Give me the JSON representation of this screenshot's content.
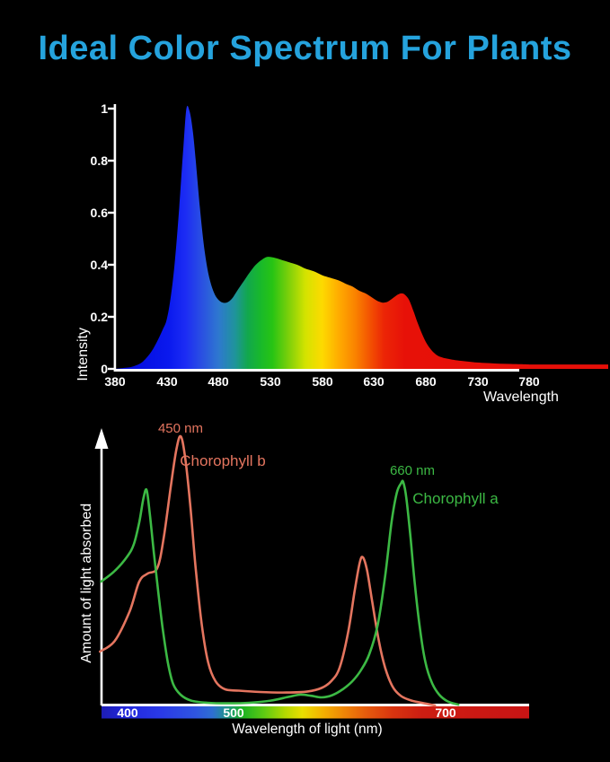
{
  "title": "Ideal Color Spectrum For Plants",
  "colors": {
    "background": "#000000",
    "title": "#25a3dd",
    "axis": "#ffffff",
    "chlorophyll_b": "#e4755f",
    "chlorophyll_a": "#3cb944"
  },
  "chart_data": [
    {
      "name": "led-light-spectrum",
      "type": "area",
      "xlabel": "Wavelength",
      "ylabel": "Intensity",
      "xlim": [
        380,
        780
      ],
      "ylim": [
        0,
        1
      ],
      "grid": false,
      "x_ticks": [
        "380",
        "430",
        "480",
        "530",
        "580",
        "630",
        "680",
        "730",
        "780"
      ],
      "y_ticks": [
        "1",
        "0.8",
        "0.6",
        "0.4",
        "0.2",
        "0"
      ],
      "series": [
        {
          "name": "intensity",
          "x": [
            380,
            390,
            398,
            406,
            414,
            420,
            426,
            430,
            434,
            438,
            442,
            446,
            449,
            452,
            455,
            458,
            462,
            466,
            470,
            474,
            478,
            483,
            488,
            493,
            498,
            504,
            510,
            516,
            522,
            527,
            533,
            540,
            548,
            556,
            564,
            572,
            580,
            588,
            596,
            604,
            610,
            616,
            622,
            628,
            633,
            638,
            642,
            646,
            650,
            654,
            657,
            660,
            664,
            668,
            672,
            676,
            680,
            684,
            688,
            692,
            696,
            700,
            708,
            716,
            724,
            732,
            742,
            752,
            762,
            772,
            780
          ],
          "y": [
            0,
            0.004,
            0.01,
            0.025,
            0.06,
            0.1,
            0.15,
            0.19,
            0.28,
            0.42,
            0.62,
            0.85,
            1.0,
            0.99,
            0.92,
            0.8,
            0.62,
            0.47,
            0.37,
            0.31,
            0.275,
            0.256,
            0.255,
            0.27,
            0.3,
            0.335,
            0.37,
            0.4,
            0.42,
            0.43,
            0.428,
            0.42,
            0.41,
            0.4,
            0.385,
            0.375,
            0.36,
            0.35,
            0.34,
            0.325,
            0.315,
            0.3,
            0.29,
            0.275,
            0.262,
            0.255,
            0.256,
            0.265,
            0.277,
            0.287,
            0.29,
            0.285,
            0.265,
            0.225,
            0.18,
            0.14,
            0.105,
            0.08,
            0.062,
            0.05,
            0.044,
            0.04,
            0.034,
            0.03,
            0.027,
            0.024,
            0.022,
            0.02,
            0.019,
            0.018,
            0.017
          ]
        }
      ],
      "peaks": [
        {
          "wavelength": 449,
          "intensity": 1.0
        },
        {
          "wavelength": 530,
          "intensity": 0.43
        },
        {
          "wavelength": 657,
          "intensity": 0.29
        }
      ],
      "gradient_stops": [
        [
          0,
          "#0008d8"
        ],
        [
          0.13,
          "#0a19ee"
        ],
        [
          0.17,
          "#1c2cf4"
        ],
        [
          0.21,
          "#2a50e2"
        ],
        [
          0.25,
          "#2e78cf"
        ],
        [
          0.29,
          "#1f949b"
        ],
        [
          0.32,
          "#12a74e"
        ],
        [
          0.35,
          "#18b82c"
        ],
        [
          0.38,
          "#27c414"
        ],
        [
          0.42,
          "#7ed00a"
        ],
        [
          0.46,
          "#d4e300"
        ],
        [
          0.5,
          "#fdda00"
        ],
        [
          0.54,
          "#ffac00"
        ],
        [
          0.58,
          "#fa8300"
        ],
        [
          0.62,
          "#f24c02"
        ],
        [
          0.65,
          "#ec2506"
        ],
        [
          0.7,
          "#e71108"
        ],
        [
          1,
          "#e60f08"
        ]
      ]
    },
    {
      "name": "chlorophyll-absorption",
      "type": "line",
      "xlabel": "Wavelength of light (nm)",
      "ylabel": "Amount of light absorbed",
      "xlim": [
        375,
        790
      ],
      "grid": false,
      "annotations": [
        {
          "text": "450 nm",
          "series": "Chorophyll b"
        },
        {
          "text": "Chorophyll b",
          "series": "Chorophyll b"
        },
        {
          "text": "660 nm",
          "series": "Chorophyll a"
        },
        {
          "text": "Chorophyll a",
          "series": "Chorophyll a"
        }
      ],
      "series": [
        {
          "name": "Chorophyll b",
          "color": "#e4755f",
          "x": [
            374,
            388,
            402,
            411,
            419,
            428,
            434,
            441,
            446,
            450,
            454,
            459,
            464,
            470,
            476,
            483,
            492,
            505,
            525,
            550,
            570,
            583,
            592,
            600,
            608,
            614,
            619,
            622,
            626,
            631,
            637,
            643,
            650,
            658,
            668,
            680,
            690
          ],
          "y": [
            0.2,
            0.24,
            0.35,
            0.46,
            0.49,
            0.51,
            0.62,
            0.82,
            0.95,
            1.0,
            0.93,
            0.75,
            0.52,
            0.3,
            0.16,
            0.09,
            0.06,
            0.055,
            0.05,
            0.048,
            0.052,
            0.065,
            0.09,
            0.14,
            0.27,
            0.42,
            0.53,
            0.55,
            0.5,
            0.38,
            0.24,
            0.14,
            0.07,
            0.035,
            0.018,
            0.008,
            0
          ]
        },
        {
          "name": "Chorophyll a",
          "color": "#3cb944",
          "x": [
            375,
            388,
            400,
            406,
            411,
            415,
            418,
            421,
            425,
            429,
            433,
            438,
            443,
            450,
            460,
            475,
            495,
            515,
            535,
            552,
            563,
            573,
            583,
            593,
            603,
            612,
            620,
            628,
            636,
            643,
            649,
            654,
            658,
            660,
            663,
            667,
            671,
            676,
            681,
            687,
            694,
            702,
            712
          ],
          "y": [
            0.46,
            0.5,
            0.555,
            0.6,
            0.68,
            0.77,
            0.8,
            0.71,
            0.56,
            0.42,
            0.29,
            0.16,
            0.08,
            0.04,
            0.018,
            0.01,
            0.008,
            0.01,
            0.018,
            0.032,
            0.04,
            0.036,
            0.03,
            0.038,
            0.06,
            0.09,
            0.13,
            0.19,
            0.3,
            0.48,
            0.68,
            0.79,
            0.825,
            0.83,
            0.77,
            0.62,
            0.45,
            0.28,
            0.16,
            0.085,
            0.04,
            0.015,
            0.003
          ]
        }
      ],
      "colorbar": {
        "labels": [
          "400",
          "500",
          "700"
        ],
        "gradient_stops": [
          [
            0,
            "#1d1db5"
          ],
          [
            0.06,
            "#2228dd"
          ],
          [
            0.14,
            "#2a3ae8"
          ],
          [
            0.22,
            "#2f55e0"
          ],
          [
            0.26,
            "#2e6fd2"
          ],
          [
            0.295,
            "#1f9785"
          ],
          [
            0.33,
            "#1cb322"
          ],
          [
            0.38,
            "#5ec913"
          ],
          [
            0.43,
            "#b4d800"
          ],
          [
            0.47,
            "#eade00"
          ],
          [
            0.52,
            "#f4ae00"
          ],
          [
            0.57,
            "#ee8307"
          ],
          [
            0.62,
            "#e55a0d"
          ],
          [
            0.68,
            "#d9350f"
          ],
          [
            0.75,
            "#cd1d12"
          ],
          [
            1,
            "#c91414"
          ]
        ]
      }
    }
  ]
}
